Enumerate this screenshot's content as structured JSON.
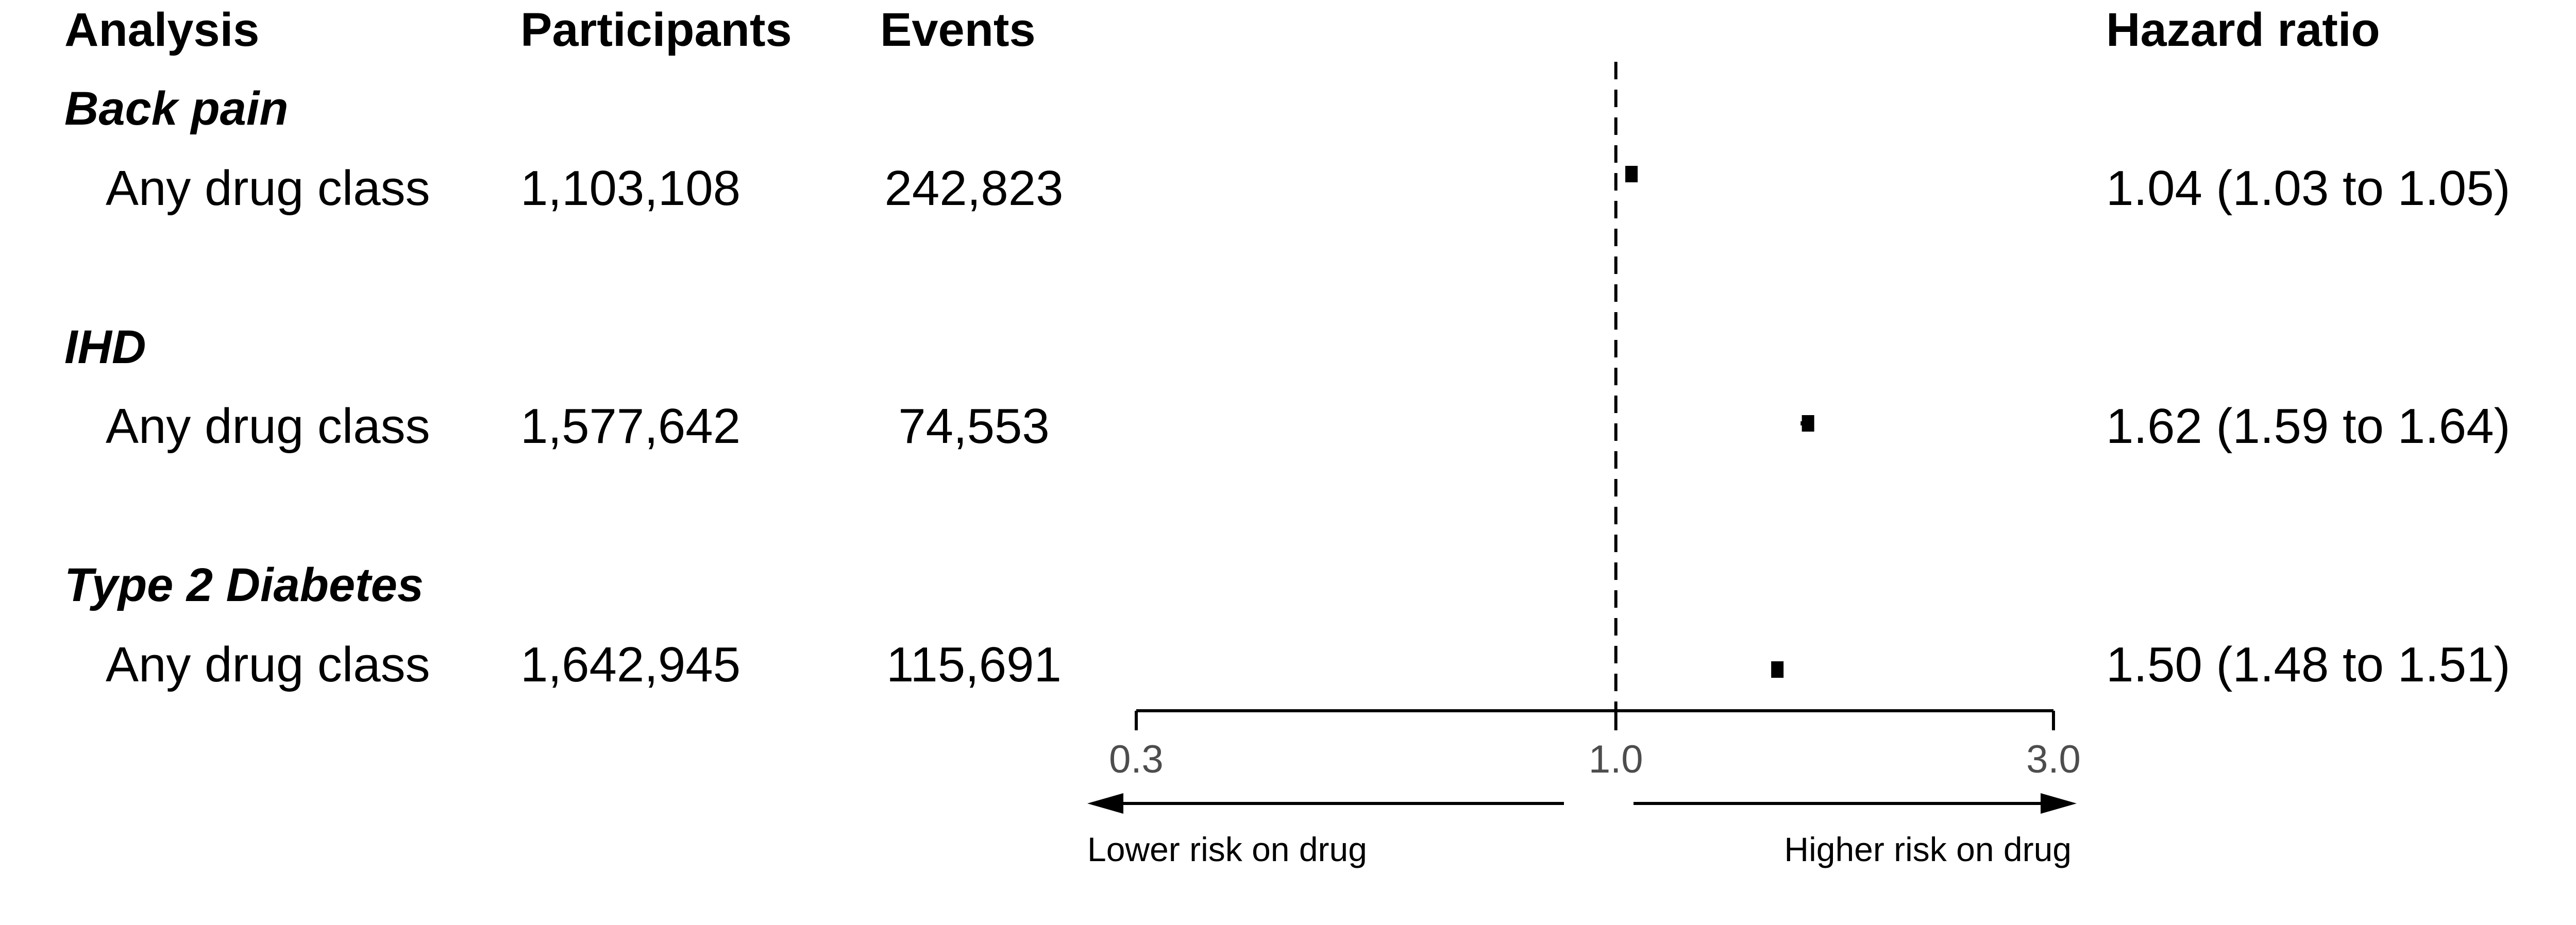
{
  "headers": {
    "analysis": "Analysis",
    "participants": "Participants",
    "events": "Events",
    "hazard_ratio": "Hazard ratio"
  },
  "groups": [
    {
      "name": "Back pain",
      "row": {
        "label": "Any drug class",
        "participants": "1,103,108",
        "events": "242,823",
        "hr_text": "1.04 (1.03 to 1.05)"
      }
    },
    {
      "name": "IHD",
      "row": {
        "label": "Any drug class",
        "participants": "1,577,642",
        "events": "74,553",
        "hr_text": "1.62 (1.59 to 1.64)"
      }
    },
    {
      "name": "Type 2 Diabetes",
      "row": {
        "label": "Any drug class",
        "participants": "1,642,945",
        "events": "115,691",
        "hr_text": "1.50 (1.48 to 1.51)"
      }
    }
  ],
  "axis": {
    "ticks": [
      "0.3",
      "1.0",
      "3.0"
    ],
    "left_arrow_label": "Lower risk on drug",
    "right_arrow_label": "Higher risk on drug"
  },
  "chart_data": {
    "type": "forest",
    "scale": "log",
    "x": "Hazard ratio",
    "xlim": [
      0.3,
      3.0
    ],
    "reference_line": 1.0,
    "tick_values": [
      0.3,
      1.0,
      3.0
    ],
    "points": [
      {
        "group": "Back pain",
        "label": "Any drug class",
        "hr": 1.04,
        "lower": 1.03,
        "upper": 1.05
      },
      {
        "group": "IHD",
        "label": "Any drug class",
        "hr": 1.62,
        "lower": 1.59,
        "upper": 1.64
      },
      {
        "group": "Type 2 Diabetes",
        "label": "Any drug class",
        "hr": 1.5,
        "lower": 1.48,
        "upper": 1.51
      }
    ]
  }
}
